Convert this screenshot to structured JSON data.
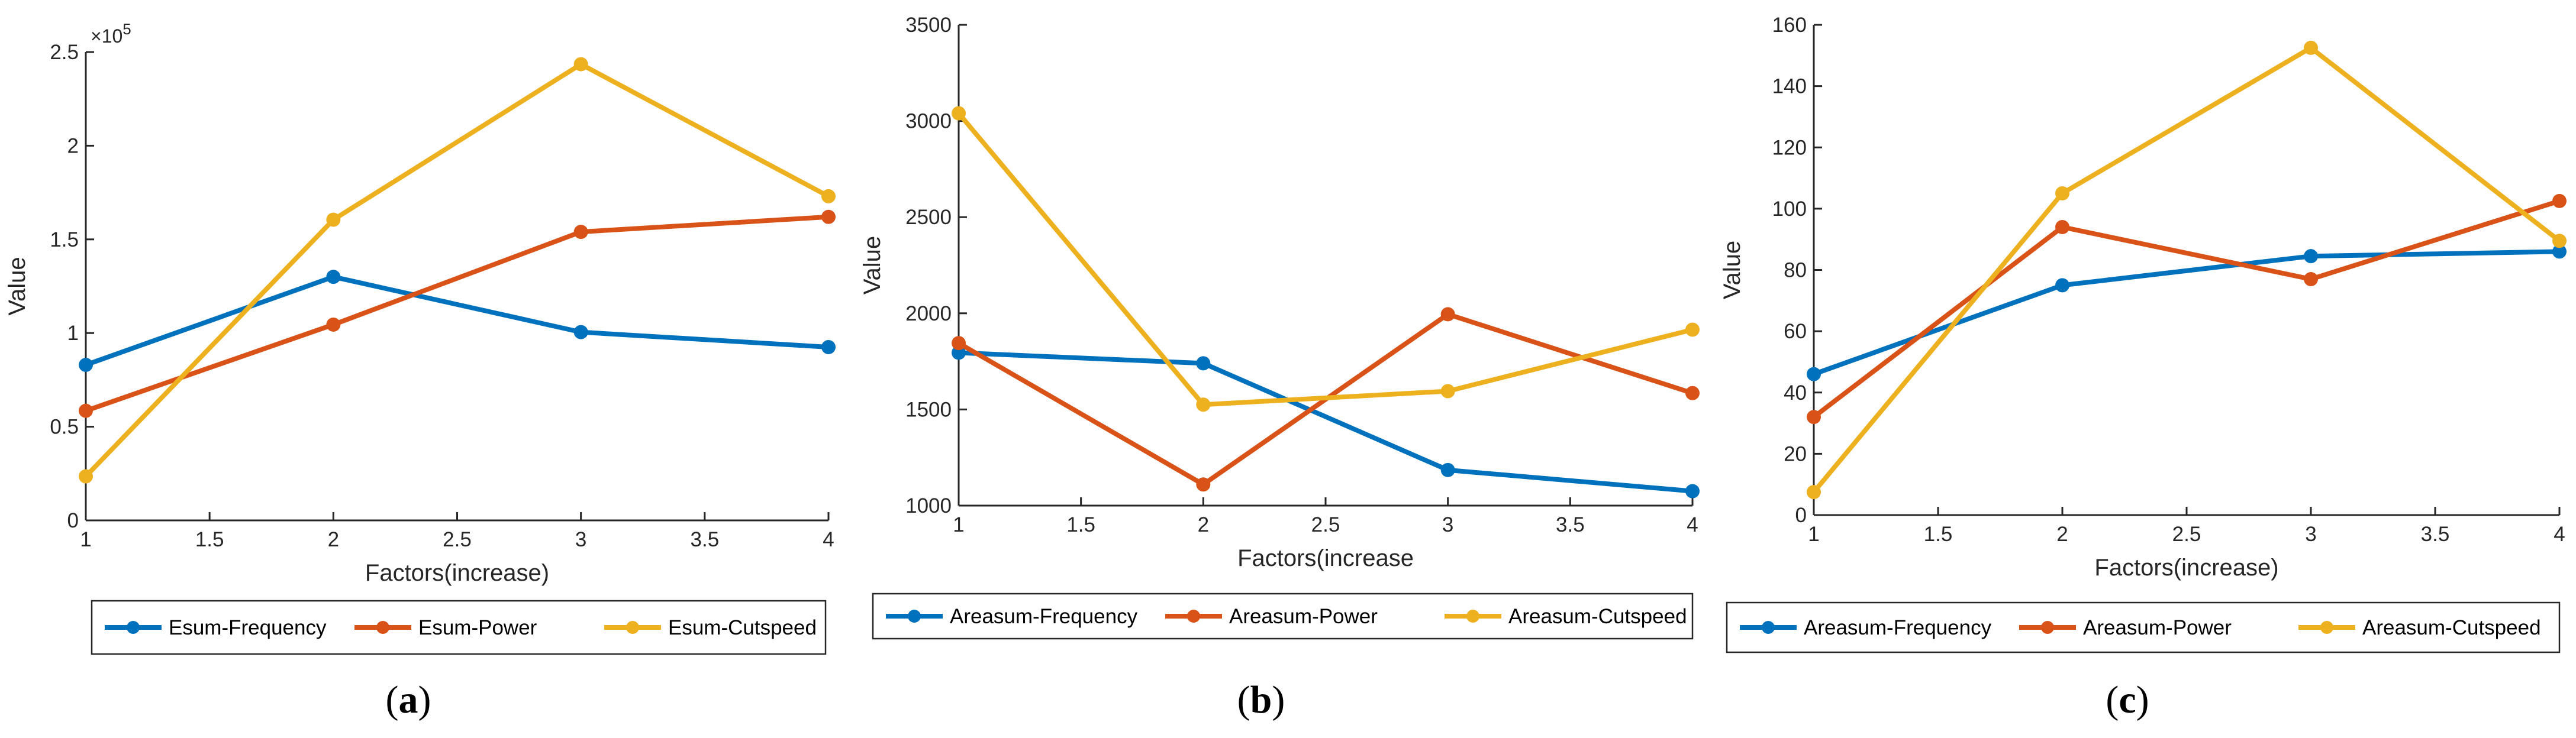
{
  "chart_data": [
    {
      "type": "line",
      "panel_label": "a",
      "xlabel": "Factors(increase)",
      "ylabel": "Value",
      "x": [
        1,
        2,
        3,
        4
      ],
      "xlim": [
        1,
        4
      ],
      "ylim": [
        0,
        250000
      ],
      "xticks": [
        1,
        1.5,
        2,
        2.5,
        3,
        3.5,
        4
      ],
      "xtick_labels": [
        "1",
        "1.5",
        "2",
        "2.5",
        "3",
        "3.5",
        "4"
      ],
      "yticks": [
        0,
        50000,
        100000,
        150000,
        200000,
        250000
      ],
      "ytick_labels": [
        "0",
        "0.5",
        "1",
        "1.5",
        "2",
        "2.5"
      ],
      "y_exponent_label": "×10",
      "y_exponent_power": "5",
      "legend_position": "bottom",
      "series": [
        {
          "name": "Esum-Frequency",
          "color": "#0072BD",
          "values": [
            83000,
            130000,
            100500,
            92500
          ]
        },
        {
          "name": "Esum-Power",
          "color": "#D95319",
          "values": [
            58500,
            104500,
            154000,
            162000
          ]
        },
        {
          "name": "Esum-Cutspeed",
          "color": "#EDB120",
          "values": [
            23500,
            160500,
            243500,
            173000
          ]
        }
      ]
    },
    {
      "type": "line",
      "panel_label": "b",
      "xlabel": "Factors(increase",
      "ylabel": "Value",
      "x": [
        1,
        2,
        3,
        4
      ],
      "xlim": [
        1,
        4
      ],
      "ylim": [
        1000,
        3500
      ],
      "xticks": [
        1,
        1.5,
        2,
        2.5,
        3,
        3.5,
        4
      ],
      "xtick_labels": [
        "1",
        "1.5",
        "2",
        "2.5",
        "3",
        "3.5",
        "4"
      ],
      "yticks": [
        1000,
        1500,
        2000,
        2500,
        3000,
        3500
      ],
      "ytick_labels": [
        "1000",
        "1500",
        "2000",
        "2500",
        "3000",
        "3500"
      ],
      "legend_position": "bottom",
      "series": [
        {
          "name": "Areasum-Frequency",
          "color": "#0072BD",
          "values": [
            1795,
            1740,
            1185,
            1075
          ]
        },
        {
          "name": "Areasum-Power",
          "color": "#D95319",
          "values": [
            1845,
            1110,
            1995,
            1585
          ]
        },
        {
          "name": "Areasum-Cutspeed",
          "color": "#EDB120",
          "values": [
            3040,
            1525,
            1595,
            1915
          ]
        }
      ]
    },
    {
      "type": "line",
      "panel_label": "c",
      "xlabel": "Factors(increase)",
      "ylabel": "Value",
      "x": [
        1,
        2,
        3,
        4
      ],
      "xlim": [
        1,
        4
      ],
      "ylim": [
        0,
        160
      ],
      "xticks": [
        1,
        1.5,
        2,
        2.5,
        3,
        3.5,
        4
      ],
      "xtick_labels": [
        "1",
        "1.5",
        "2",
        "2.5",
        "3",
        "3.5",
        "4"
      ],
      "yticks": [
        0,
        20,
        40,
        60,
        80,
        100,
        120,
        140,
        160
      ],
      "ytick_labels": [
        "0",
        "20",
        "40",
        "60",
        "80",
        "100",
        "120",
        "140",
        "160"
      ],
      "legend_position": "bottom",
      "series": [
        {
          "name": "Areasum-Frequency",
          "color": "#0072BD",
          "values": [
            46,
            75,
            84.5,
            86
          ]
        },
        {
          "name": "Areasum-Power",
          "color": "#D95319",
          "values": [
            32,
            94,
            77,
            102.5
          ]
        },
        {
          "name": "Areasum-Cutspeed",
          "color": "#EDB120",
          "values": [
            7.5,
            105,
            152.5,
            89.5
          ]
        }
      ]
    }
  ]
}
